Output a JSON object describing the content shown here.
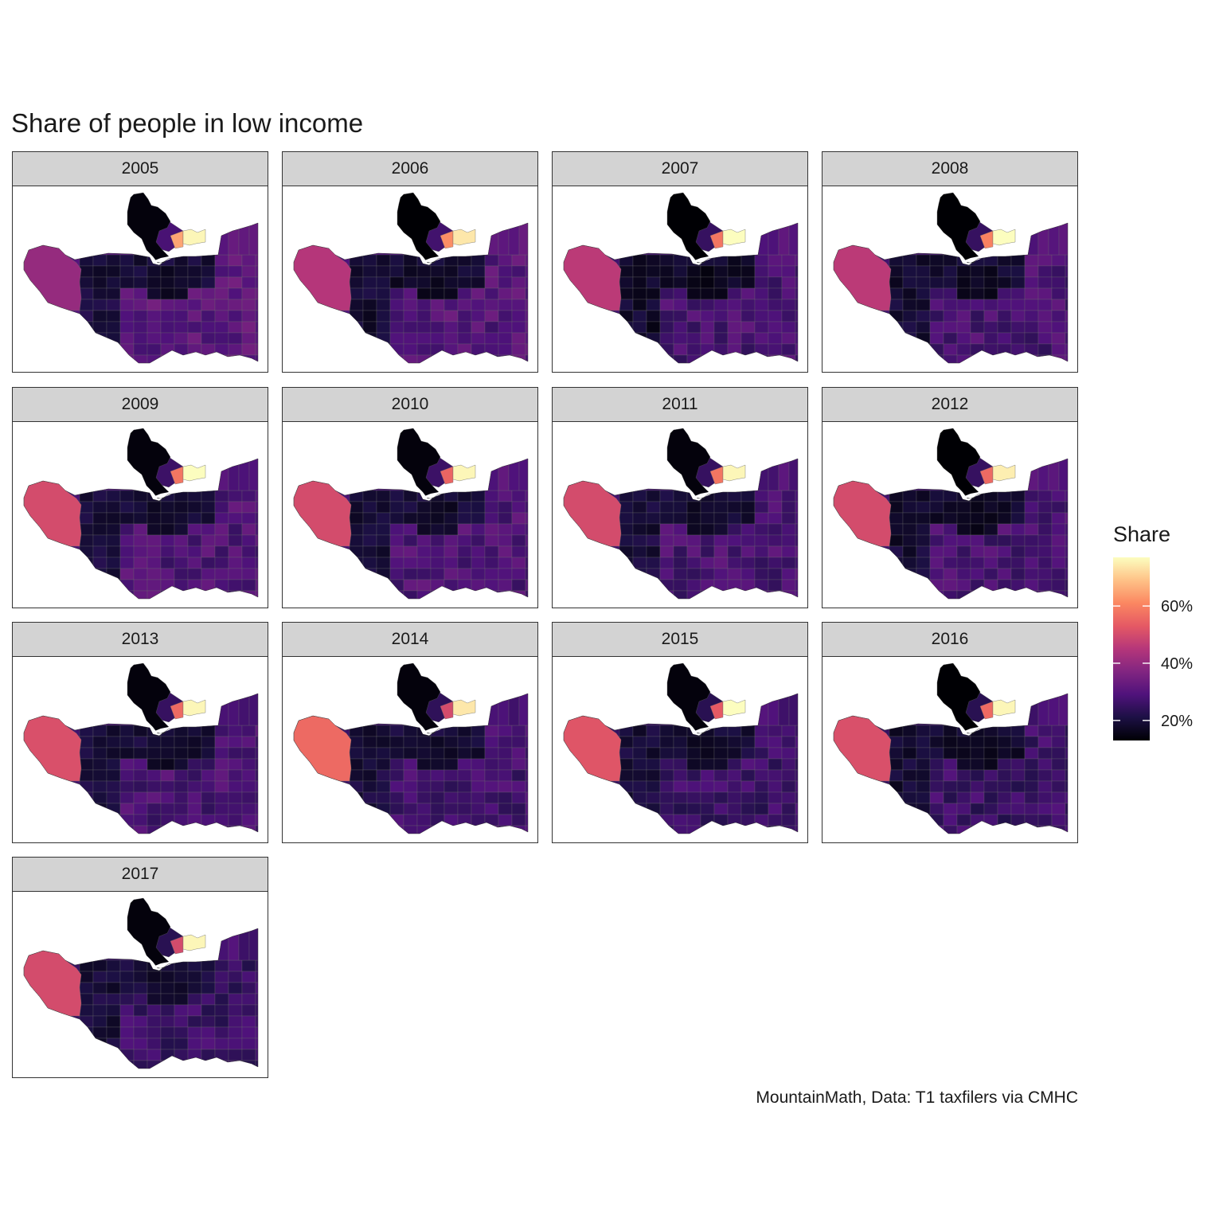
{
  "chart_data": {
    "type": "choropleth map, faceted by year",
    "title": "Share of people in low income",
    "caption": "MountainMath, Data: T1 taxfilers via CMHC",
    "facets": [
      "2005",
      "2006",
      "2007",
      "2008",
      "2009",
      "2010",
      "2011",
      "2012",
      "2013",
      "2014",
      "2015",
      "2016",
      "2017"
    ],
    "legend": {
      "title": "Share",
      "ticks": [
        "20%",
        "40%",
        "60%"
      ],
      "tick_values": [
        0.2,
        0.4,
        0.6
      ],
      "range": [
        0.13,
        0.77
      ],
      "palette": "magma",
      "colors": [
        "#000004",
        "#1c1044",
        "#4f127b",
        "#812581",
        "#b5367a",
        "#e55964",
        "#fb8761",
        "#fec287",
        "#fcfdbf"
      ]
    }
  }
}
